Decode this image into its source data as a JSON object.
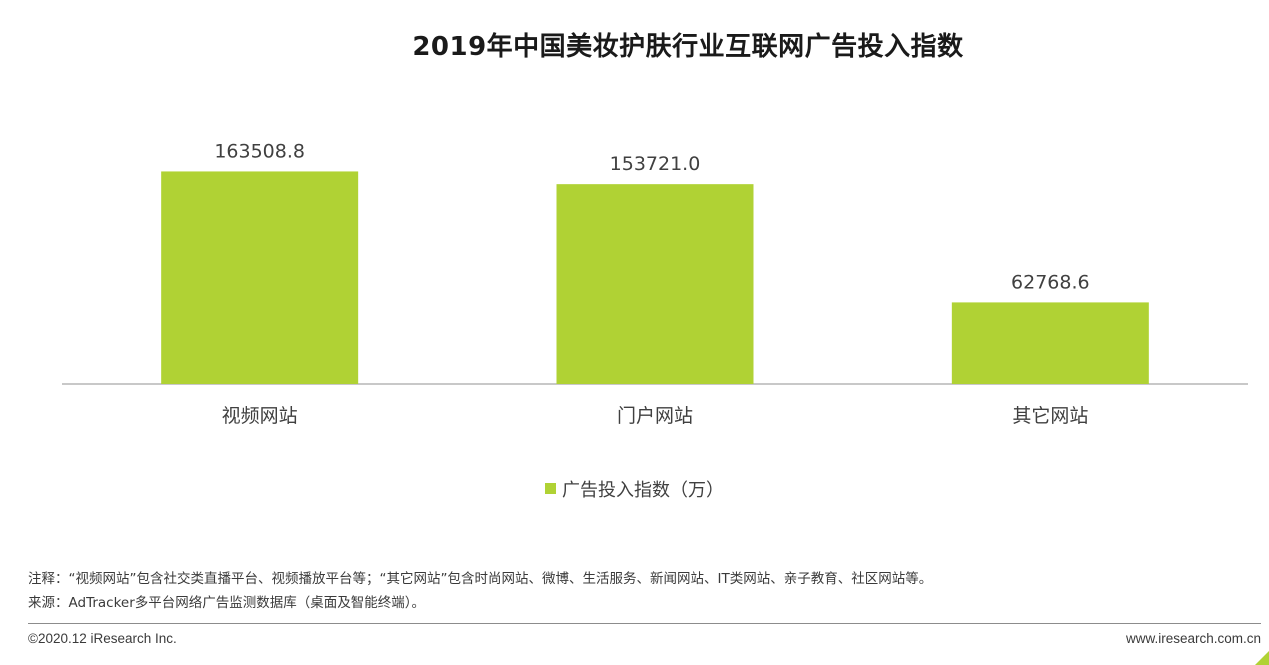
{
  "chart_data": {
    "type": "bar",
    "title": "2019年中国美妆护肤行业互联网广告投入指数",
    "categories": [
      "视频网站",
      "门户网站",
      "其它网站"
    ],
    "series": [
      {
        "name": "广告投入指数（万）",
        "values": [
          163508.8,
          153721.0,
          62768.6
        ],
        "value_labels": [
          "163508.8",
          "153721.0",
          "62768.6"
        ],
        "color": "#b0d234"
      }
    ],
    "ylim": [
      0,
      180000
    ],
    "grid": false,
    "legend_position": "bottom-center",
    "baseline_color": "#a6a6a6"
  },
  "notes": {
    "line1": "注释：“视频网站”包含社交类直播平台、视频播放平台等；“其它网站”包含时尚网站、微博、生活服务、新闻网站、IT类网站、亲子教育、社区网站等。",
    "line2": "来源：AdTracker多平台网络广告监测数据库（桌面及智能终端）。"
  },
  "footer": {
    "copyright": "©2020.12 iResearch Inc.",
    "website": "www.iresearch.com.cn"
  }
}
